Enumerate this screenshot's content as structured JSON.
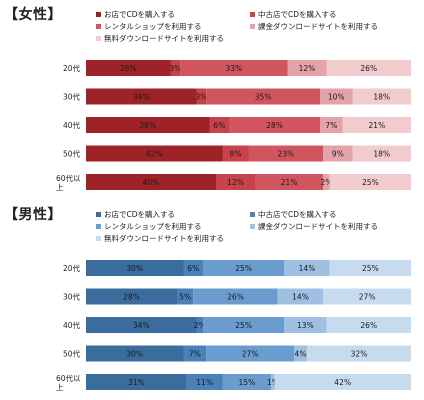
{
  "chart_data": [
    {
      "type": "bar",
      "stacked": true,
      "orientation": "horizontal",
      "title": "【女性】",
      "categories": [
        "20代",
        "30代",
        "40代",
        "50代",
        "60代以上"
      ],
      "category_lines": [
        [
          "20代"
        ],
        [
          "30代"
        ],
        [
          "40代"
        ],
        [
          "50代"
        ],
        [
          "60代以",
          "上"
        ]
      ],
      "xlim": [
        0,
        100
      ],
      "legend_position": "top",
      "series": [
        {
          "name": "お店でCDを購入する",
          "color": "#9e2329",
          "values": [
            26,
            34,
            38,
            42,
            40
          ]
        },
        {
          "name": "中古店でCDを購入する",
          "color": "#c7424a",
          "values": [
            3,
            3,
            6,
            8,
            12
          ]
        },
        {
          "name": "レンタルショップを利用する",
          "color": "#d0555e",
          "values": [
            33,
            35,
            28,
            23,
            21
          ]
        },
        {
          "name": "課金ダウンロードサイトを利用する",
          "color": "#e4a3a8",
          "values": [
            12,
            10,
            7,
            9,
            2
          ]
        },
        {
          "name": "無料ダウンロードサイトを利用する",
          "color": "#f1cbce",
          "values": [
            26,
            18,
            21,
            18,
            25
          ]
        }
      ]
    },
    {
      "type": "bar",
      "stacked": true,
      "orientation": "horizontal",
      "title": "【男性】",
      "categories": [
        "20代",
        "30代",
        "40代",
        "50代",
        "60代以上"
      ],
      "category_lines": [
        [
          "20代"
        ],
        [
          "30代"
        ],
        [
          "40代"
        ],
        [
          "50代"
        ],
        [
          "60代以",
          "上"
        ]
      ],
      "xlim": [
        0,
        100
      ],
      "legend_position": "top",
      "series": [
        {
          "name": "お店でCDを購入する",
          "color": "#3a6d9e",
          "values": [
            30,
            28,
            34,
            30,
            31
          ]
        },
        {
          "name": "中古店でCDを購入する",
          "color": "#4a81b8",
          "values": [
            6,
            5,
            2,
            7,
            11
          ]
        },
        {
          "name": "レンタルショップを利用する",
          "color": "#6a9cd0",
          "values": [
            25,
            26,
            25,
            27,
            15
          ]
        },
        {
          "name": "課金ダウンロードサイトを利用する",
          "color": "#9fc0e2",
          "values": [
            14,
            14,
            13,
            4,
            1
          ]
        },
        {
          "name": "無料ダウンロードサイトを利用する",
          "color": "#c7dbef",
          "values": [
            25,
            27,
            26,
            32,
            42
          ]
        }
      ]
    }
  ]
}
